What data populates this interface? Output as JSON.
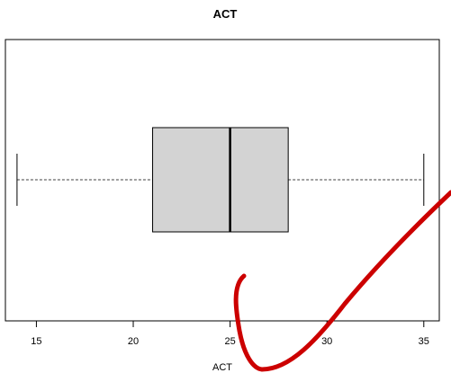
{
  "chart_data": {
    "type": "boxplot",
    "orientation": "horizontal",
    "title": "ACT",
    "xlabel": "ACT",
    "ylabel": "",
    "xlim": [
      13.4,
      35.8
    ],
    "xticks": [
      15,
      20,
      25,
      30,
      35
    ],
    "xtick_labels": [
      "15",
      "20",
      "25",
      "30",
      "35"
    ],
    "grid": false,
    "box": {
      "min": 14,
      "q1": 21,
      "median": 25,
      "q3": 28,
      "max": 35
    },
    "box_fill": "#d3d3d3",
    "annotation": {
      "type": "freehand-checkmark",
      "color": "#cc0000"
    }
  }
}
